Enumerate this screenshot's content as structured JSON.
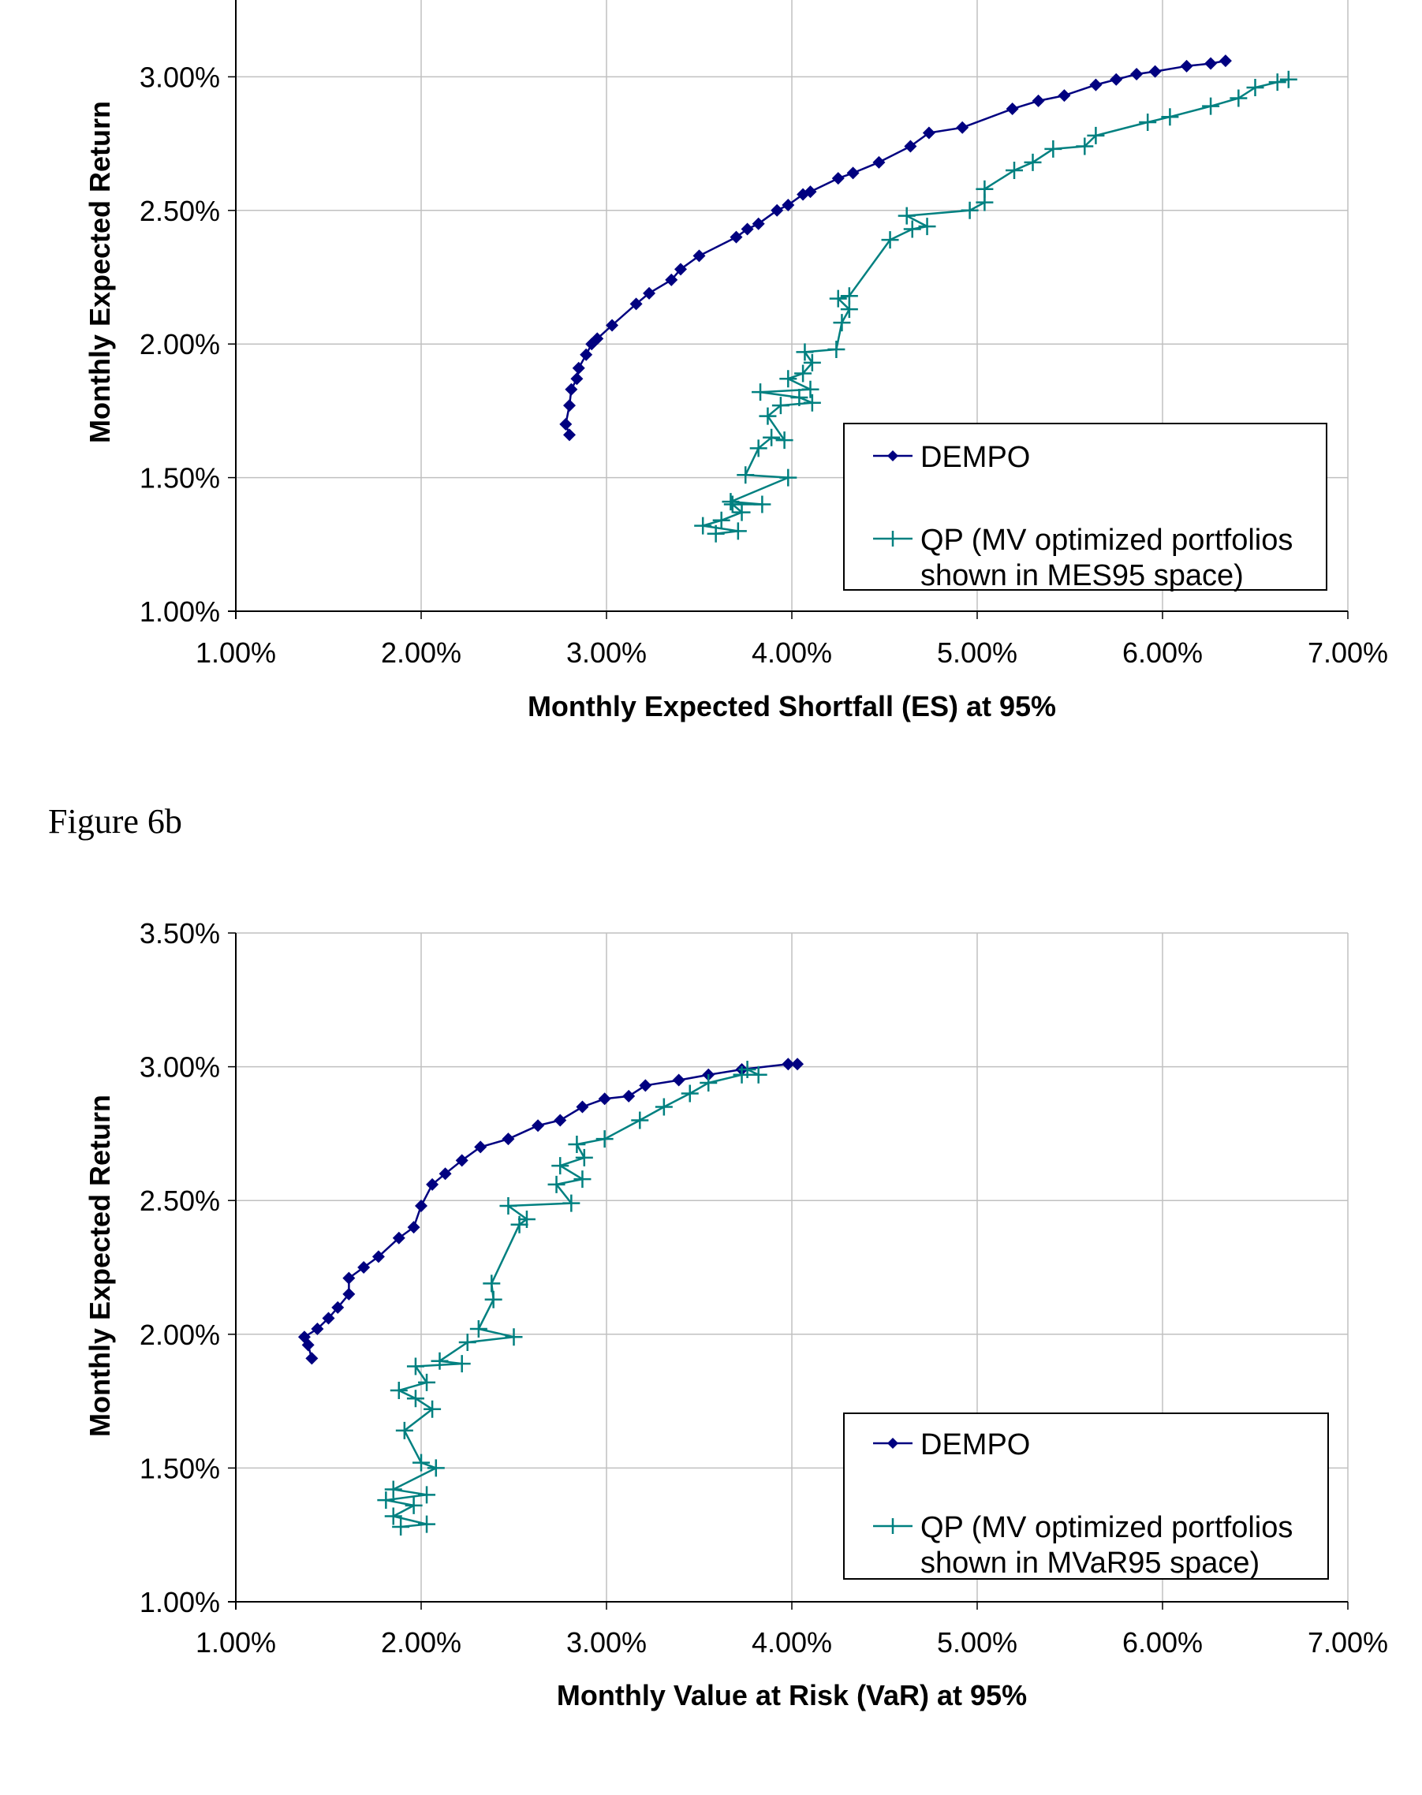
{
  "figure_captions": {
    "fig_b": "Figure 6b"
  },
  "colors": {
    "dempo": "#000080",
    "qp": "#008080",
    "grid": "#c0c0c0",
    "axis": "#000000"
  },
  "chart_data": [
    {
      "id": "fig6a",
      "type": "line",
      "title": "",
      "xlabel": "Monthly Expected Shortfall (ES) at 95%",
      "ylabel": "Monthly Expected Return",
      "xlim": [
        1.0,
        7.0
      ],
      "ylim": [
        1.0,
        3.5
      ],
      "grid": true,
      "legend_position": "bottom-right",
      "x_ticks": [
        "1.00%",
        "2.00%",
        "3.00%",
        "4.00%",
        "5.00%",
        "6.00%",
        "7.00%"
      ],
      "x_tick_values": [
        1,
        2,
        3,
        4,
        5,
        6,
        7
      ],
      "y_ticks": [
        "1.00%",
        "1.50%",
        "2.00%",
        "2.50%",
        "3.00%"
      ],
      "y_tick_values": [
        1.0,
        1.5,
        2.0,
        2.5,
        3.0
      ],
      "series": [
        {
          "name": "DEMPO",
          "marker": "diamond",
          "x": [
            2.8,
            2.78,
            2.8,
            2.81,
            2.84,
            2.85,
            2.89,
            2.92,
            2.95,
            3.03,
            3.16,
            3.23,
            3.35,
            3.4,
            3.5,
            3.7,
            3.76,
            3.82,
            3.92,
            3.98,
            4.06,
            4.1,
            4.25,
            4.33,
            4.47,
            4.64,
            4.74,
            4.92,
            5.19,
            5.33,
            5.47,
            5.64,
            5.75,
            5.86,
            5.96,
            6.13,
            6.26,
            6.34
          ],
          "y": [
            1.66,
            1.7,
            1.77,
            1.83,
            1.87,
            1.91,
            1.96,
            2.0,
            2.02,
            2.07,
            2.15,
            2.19,
            2.24,
            2.28,
            2.33,
            2.4,
            2.43,
            2.45,
            2.5,
            2.52,
            2.56,
            2.57,
            2.62,
            2.64,
            2.68,
            2.74,
            2.79,
            2.81,
            2.88,
            2.91,
            2.93,
            2.97,
            2.99,
            3.01,
            3.02,
            3.04,
            3.05,
            3.06
          ]
        },
        {
          "name": "QP (MV optimized portfolios shown in MES95 space)",
          "legend_lines": [
            "QP (MV optimized portfolios",
            "shown in MES95 space)"
          ],
          "marker": "plus",
          "x": [
            3.59,
            3.71,
            3.52,
            3.62,
            3.73,
            3.68,
            3.84,
            3.67,
            3.98,
            3.75,
            3.82,
            3.89,
            3.96,
            3.87,
            3.94,
            4.11,
            4.04,
            3.83,
            4.1,
            3.98,
            4.06,
            4.11,
            4.07,
            4.24,
            4.27,
            4.31,
            4.25,
            4.31,
            4.53,
            4.65,
            4.73,
            4.62,
            4.96,
            5.04,
            5.04,
            5.2,
            5.3,
            5.41,
            5.58,
            5.64,
            5.92,
            6.04,
            6.26,
            6.41,
            6.5,
            6.62,
            6.68
          ],
          "y": [
            1.29,
            1.3,
            1.32,
            1.34,
            1.37,
            1.4,
            1.4,
            1.41,
            1.5,
            1.51,
            1.61,
            1.65,
            1.64,
            1.73,
            1.77,
            1.78,
            1.8,
            1.82,
            1.83,
            1.87,
            1.89,
            1.93,
            1.97,
            1.98,
            2.08,
            2.13,
            2.17,
            2.18,
            2.39,
            2.43,
            2.44,
            2.48,
            2.5,
            2.53,
            2.58,
            2.65,
            2.68,
            2.73,
            2.74,
            2.78,
            2.83,
            2.85,
            2.89,
            2.92,
            2.96,
            2.98,
            2.99
          ]
        }
      ]
    },
    {
      "id": "fig6b",
      "type": "line",
      "title": "Figure 6b",
      "xlabel": "Monthly Value at Risk (VaR) at 95%",
      "ylabel": "Monthly Expected Return",
      "xlim": [
        1.0,
        7.0
      ],
      "ylim": [
        1.0,
        3.5
      ],
      "grid": true,
      "legend_position": "bottom-right",
      "x_ticks": [
        "1.00%",
        "2.00%",
        "3.00%",
        "4.00%",
        "5.00%",
        "6.00%",
        "7.00%"
      ],
      "x_tick_values": [
        1,
        2,
        3,
        4,
        5,
        6,
        7
      ],
      "y_ticks": [
        "1.00%",
        "1.50%",
        "2.00%",
        "2.50%",
        "3.00%",
        "3.50%"
      ],
      "y_tick_values": [
        1.0,
        1.5,
        2.0,
        2.5,
        3.0,
        3.5
      ],
      "series": [
        {
          "name": "DEMPO",
          "marker": "diamond",
          "x": [
            1.41,
            1.39,
            1.37,
            1.44,
            1.5,
            1.55,
            1.61,
            1.61,
            1.69,
            1.77,
            1.88,
            1.96,
            2.0,
            2.06,
            2.13,
            2.22,
            2.32,
            2.47,
            2.63,
            2.75,
            2.87,
            2.99,
            3.12,
            3.21,
            3.39,
            3.55,
            3.73,
            3.98,
            4.03
          ],
          "y": [
            1.91,
            1.96,
            1.99,
            2.02,
            2.06,
            2.1,
            2.15,
            2.21,
            2.25,
            2.29,
            2.36,
            2.4,
            2.48,
            2.56,
            2.6,
            2.65,
            2.7,
            2.73,
            2.78,
            2.8,
            2.85,
            2.88,
            2.89,
            2.93,
            2.95,
            2.97,
            2.99,
            3.01,
            3.01
          ]
        },
        {
          "name": "QP (MV optimized portfolios shown in MVaR95 space)",
          "legend_lines": [
            "QP (MV optimized portfolios",
            "shown in MVaR95 space)"
          ],
          "marker": "plus",
          "x": [
            1.89,
            2.03,
            1.85,
            1.96,
            1.81,
            2.03,
            1.85,
            2.08,
            2.0,
            1.91,
            2.06,
            1.97,
            1.88,
            2.03,
            1.97,
            2.22,
            2.1,
            2.25,
            2.5,
            2.31,
            2.39,
            2.38,
            2.53,
            2.57,
            2.47,
            2.81,
            2.73,
            2.87,
            2.75,
            2.88,
            2.84,
            2.99,
            3.18,
            3.31,
            3.45,
            3.55,
            3.73,
            3.82,
            3.76
          ],
          "y": [
            1.28,
            1.29,
            1.32,
            1.36,
            1.38,
            1.4,
            1.42,
            1.5,
            1.52,
            1.64,
            1.72,
            1.76,
            1.79,
            1.82,
            1.88,
            1.89,
            1.9,
            1.97,
            1.99,
            2.02,
            2.13,
            2.19,
            2.41,
            2.43,
            2.48,
            2.49,
            2.56,
            2.58,
            2.63,
            2.66,
            2.71,
            2.73,
            2.8,
            2.85,
            2.9,
            2.94,
            2.97,
            2.97,
            2.99
          ]
        }
      ]
    }
  ]
}
